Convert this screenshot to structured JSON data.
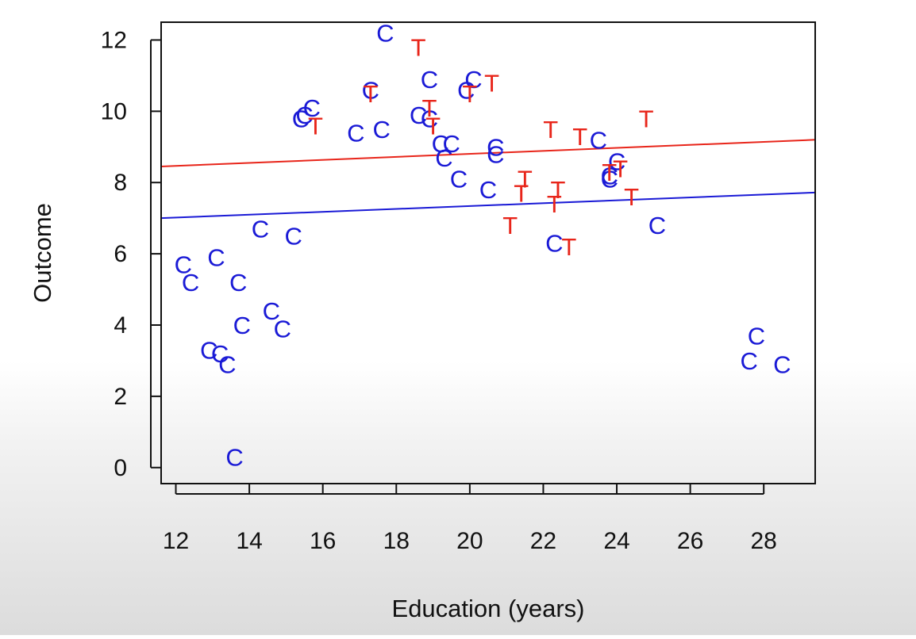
{
  "chart_data": {
    "type": "scatter",
    "xlabel": "Education (years)",
    "ylabel": "Outcome",
    "xlim": [
      11.6,
      29.4
    ],
    "ylim": [
      -0.45,
      12.5
    ],
    "x_ticks": [
      "12",
      "14",
      "16",
      "18",
      "20",
      "22",
      "24",
      "26",
      "28"
    ],
    "y_ticks": [
      "0",
      "2",
      "4",
      "6",
      "8",
      "10",
      "12"
    ],
    "grid": false,
    "series": [
      {
        "marker": "C",
        "color": "#1a1ad6",
        "points": [
          [
            12.2,
            5.7
          ],
          [
            12.4,
            5.2
          ],
          [
            13.1,
            5.9
          ],
          [
            13.7,
            5.2
          ],
          [
            14.3,
            6.7
          ],
          [
            15.2,
            6.5
          ],
          [
            12.9,
            3.3
          ],
          [
            13.2,
            3.2
          ],
          [
            13.4,
            2.9
          ],
          [
            13.8,
            4.0
          ],
          [
            14.6,
            4.4
          ],
          [
            14.9,
            3.9
          ],
          [
            13.6,
            0.3
          ],
          [
            15.4,
            9.8
          ],
          [
            15.5,
            9.9
          ],
          [
            15.7,
            10.1
          ],
          [
            16.9,
            9.4
          ],
          [
            17.3,
            10.6
          ],
          [
            17.6,
            9.5
          ],
          [
            17.7,
            12.2
          ],
          [
            18.6,
            9.9
          ],
          [
            18.9,
            10.9
          ],
          [
            18.9,
            9.8
          ],
          [
            19.2,
            9.1
          ],
          [
            19.3,
            8.7
          ],
          [
            19.5,
            9.1
          ],
          [
            19.7,
            8.1
          ],
          [
            19.9,
            10.6
          ],
          [
            20.1,
            10.9
          ],
          [
            20.5,
            7.8
          ],
          [
            20.7,
            9.0
          ],
          [
            20.7,
            8.8
          ],
          [
            22.3,
            6.3
          ],
          [
            23.5,
            9.2
          ],
          [
            23.8,
            8.2
          ],
          [
            23.8,
            8.1
          ],
          [
            24.0,
            8.6
          ],
          [
            25.1,
            6.8
          ],
          [
            27.6,
            3.0
          ],
          [
            27.8,
            3.7
          ],
          [
            28.5,
            2.9
          ]
        ],
        "fit": {
          "x": [
            11.6,
            29.4
          ],
          "y": [
            7.0,
            7.72
          ]
        }
      },
      {
        "marker": "T",
        "color": "#e8251a",
        "points": [
          [
            15.8,
            9.6
          ],
          [
            17.3,
            10.5
          ],
          [
            18.6,
            11.8
          ],
          [
            18.9,
            10.1
          ],
          [
            19.0,
            9.6
          ],
          [
            20.0,
            10.5
          ],
          [
            20.6,
            10.8
          ],
          [
            21.1,
            6.8
          ],
          [
            21.4,
            7.7
          ],
          [
            21.5,
            8.1
          ],
          [
            22.2,
            9.5
          ],
          [
            22.3,
            7.4
          ],
          [
            22.4,
            7.8
          ],
          [
            22.7,
            6.2
          ],
          [
            23.0,
            9.3
          ],
          [
            23.8,
            8.3
          ],
          [
            24.1,
            8.4
          ],
          [
            24.4,
            7.6
          ],
          [
            24.8,
            9.8
          ]
        ],
        "fit": {
          "x": [
            11.6,
            29.4
          ],
          "y": [
            8.45,
            9.2
          ]
        }
      }
    ]
  }
}
